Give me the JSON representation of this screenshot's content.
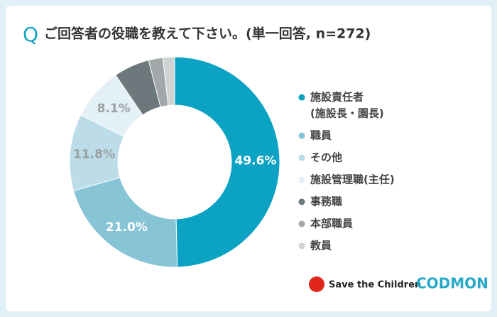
{
  "chart_data": {
    "type": "donut",
    "question_mark": "Q",
    "title": "ご回答者の役職を教えて下さい。(単一回答, n=272)",
    "labels": [
      [
        "施設責任者",
        "(施設長・園長)"
      ],
      [
        "職員"
      ],
      [
        "その他"
      ],
      [
        "施設管理職(主任)"
      ],
      [
        "事務職"
      ],
      [
        "本部職員"
      ],
      [
        "教員"
      ]
    ],
    "values": [
      49.6,
      21.0,
      11.8,
      8.1,
      5.5,
      2.2,
      1.8
    ],
    "value_labels": [
      "49.6%",
      "21.0%",
      "11.8%",
      "8.1%",
      null,
      null,
      null
    ],
    "colors": [
      "#0ba2c4",
      "#86c4d6",
      "#bcdce7",
      "#e3f0f5",
      "#6c787c",
      "#a2a7a9",
      "#d0d3d4"
    ],
    "label_colors": [
      "#ffffff",
      "#ffffff",
      "#9aa0a3",
      "#9aa0a3",
      null,
      null,
      null
    ],
    "logos": [
      "Save the Children",
      "CODMON"
    ]
  }
}
